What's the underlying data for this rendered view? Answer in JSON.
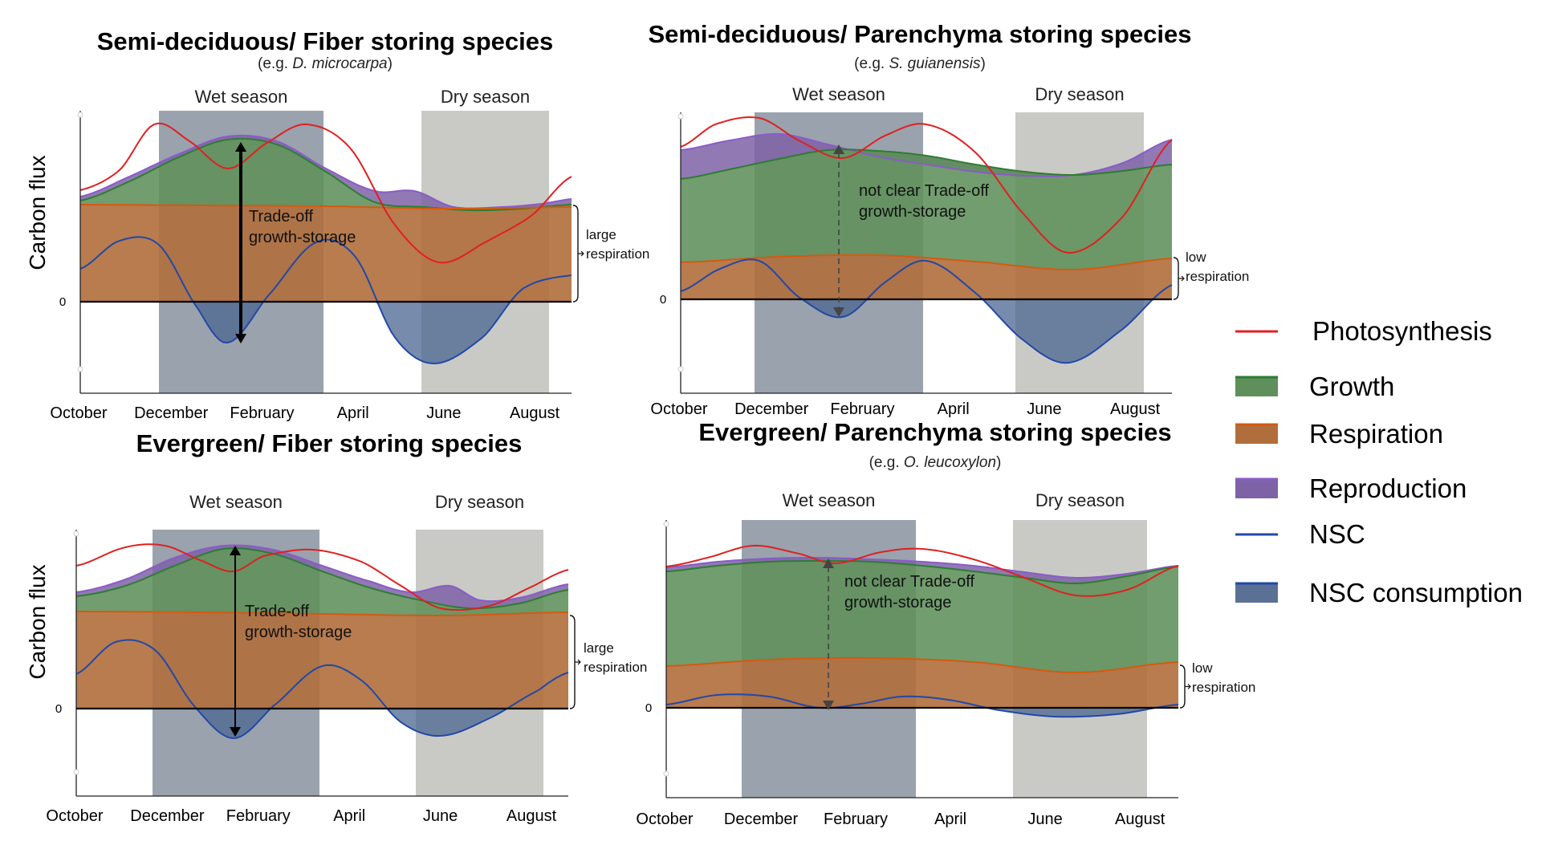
{
  "colors": {
    "photosynthesis": "#e02020",
    "growth_fill": "#5f8f5a",
    "growth_line": "#2e7d32",
    "respiration_fill": "#b06e3c",
    "respiration_line": "#d45a10",
    "reproduction_fill": "#7e62a6",
    "reproduction_line": "#8a5cc8",
    "nsc_line": "#2248a8",
    "nsc_fill": "#4a6590",
    "wet_band": "#9aa2ad",
    "dry_band": "#c9cac5"
  },
  "months": [
    "October",
    "December",
    "February",
    "April",
    "June",
    "August"
  ],
  "axis": {
    "ylabel": "Carbon flux",
    "zero": "0"
  },
  "panels": {
    "semi_fiber": {
      "title": "Semi-deciduous/ Fiber storing species",
      "subtitle_prefix": "(e.g. ",
      "subtitle_species": "D. microcarpa",
      "subtitle_suffix": ")",
      "wet": "Wet season",
      "dry": "Dry season",
      "tradeoff_line1": "Trade-off",
      "tradeoff_line2": "growth-storage",
      "resp_line1": "large",
      "resp_line2": "respiration"
    },
    "semi_parenchyma": {
      "title": "Semi-deciduous/ Parenchyma storing species",
      "subtitle_prefix": "(e.g. ",
      "subtitle_species": "S. guianensis",
      "subtitle_suffix": ")",
      "wet": "Wet season",
      "dry": "Dry season",
      "tradeoff_line1": "not clear Trade-off",
      "tradeoff_line2": "growth-storage",
      "resp_line1": "low",
      "resp_line2": "respiration"
    },
    "ever_fiber": {
      "title": "Evergreen/ Fiber storing species",
      "wet": "Wet season",
      "dry": "Dry season",
      "tradeoff_line1": "Trade-off",
      "tradeoff_line2": "growth-storage",
      "resp_line1": "large",
      "resp_line2": "respiration"
    },
    "ever_parenchyma": {
      "title": "Evergreen/ Parenchyma storing species",
      "subtitle_prefix": "(e.g. ",
      "subtitle_species": "O. leucoxylon",
      "subtitle_suffix": ")",
      "wet": "Wet season",
      "dry": "Dry season",
      "tradeoff_line1": "not clear Trade-off",
      "tradeoff_line2": "growth-storage",
      "resp_line1": "low",
      "resp_line2": "respiration"
    }
  },
  "legend": [
    {
      "label": "Photosynthesis",
      "kind": "line",
      "color": "#e02020"
    },
    {
      "label": "Growth",
      "kind": "box",
      "color": "#5f8f5a",
      "edge": "#2e7d32"
    },
    {
      "label": "Respiration",
      "kind": "box",
      "color": "#b06e3c",
      "edge": "#d45a10"
    },
    {
      "label": "Reproduction",
      "kind": "box",
      "color": "#7e62a6",
      "edge": "#8a5cc8"
    },
    {
      "label": "NSC",
      "kind": "line",
      "color": "#2248a8"
    },
    {
      "label": "NSC consumption",
      "kind": "box",
      "color": "#5a7195",
      "edge": "#2248a8"
    }
  ]
}
